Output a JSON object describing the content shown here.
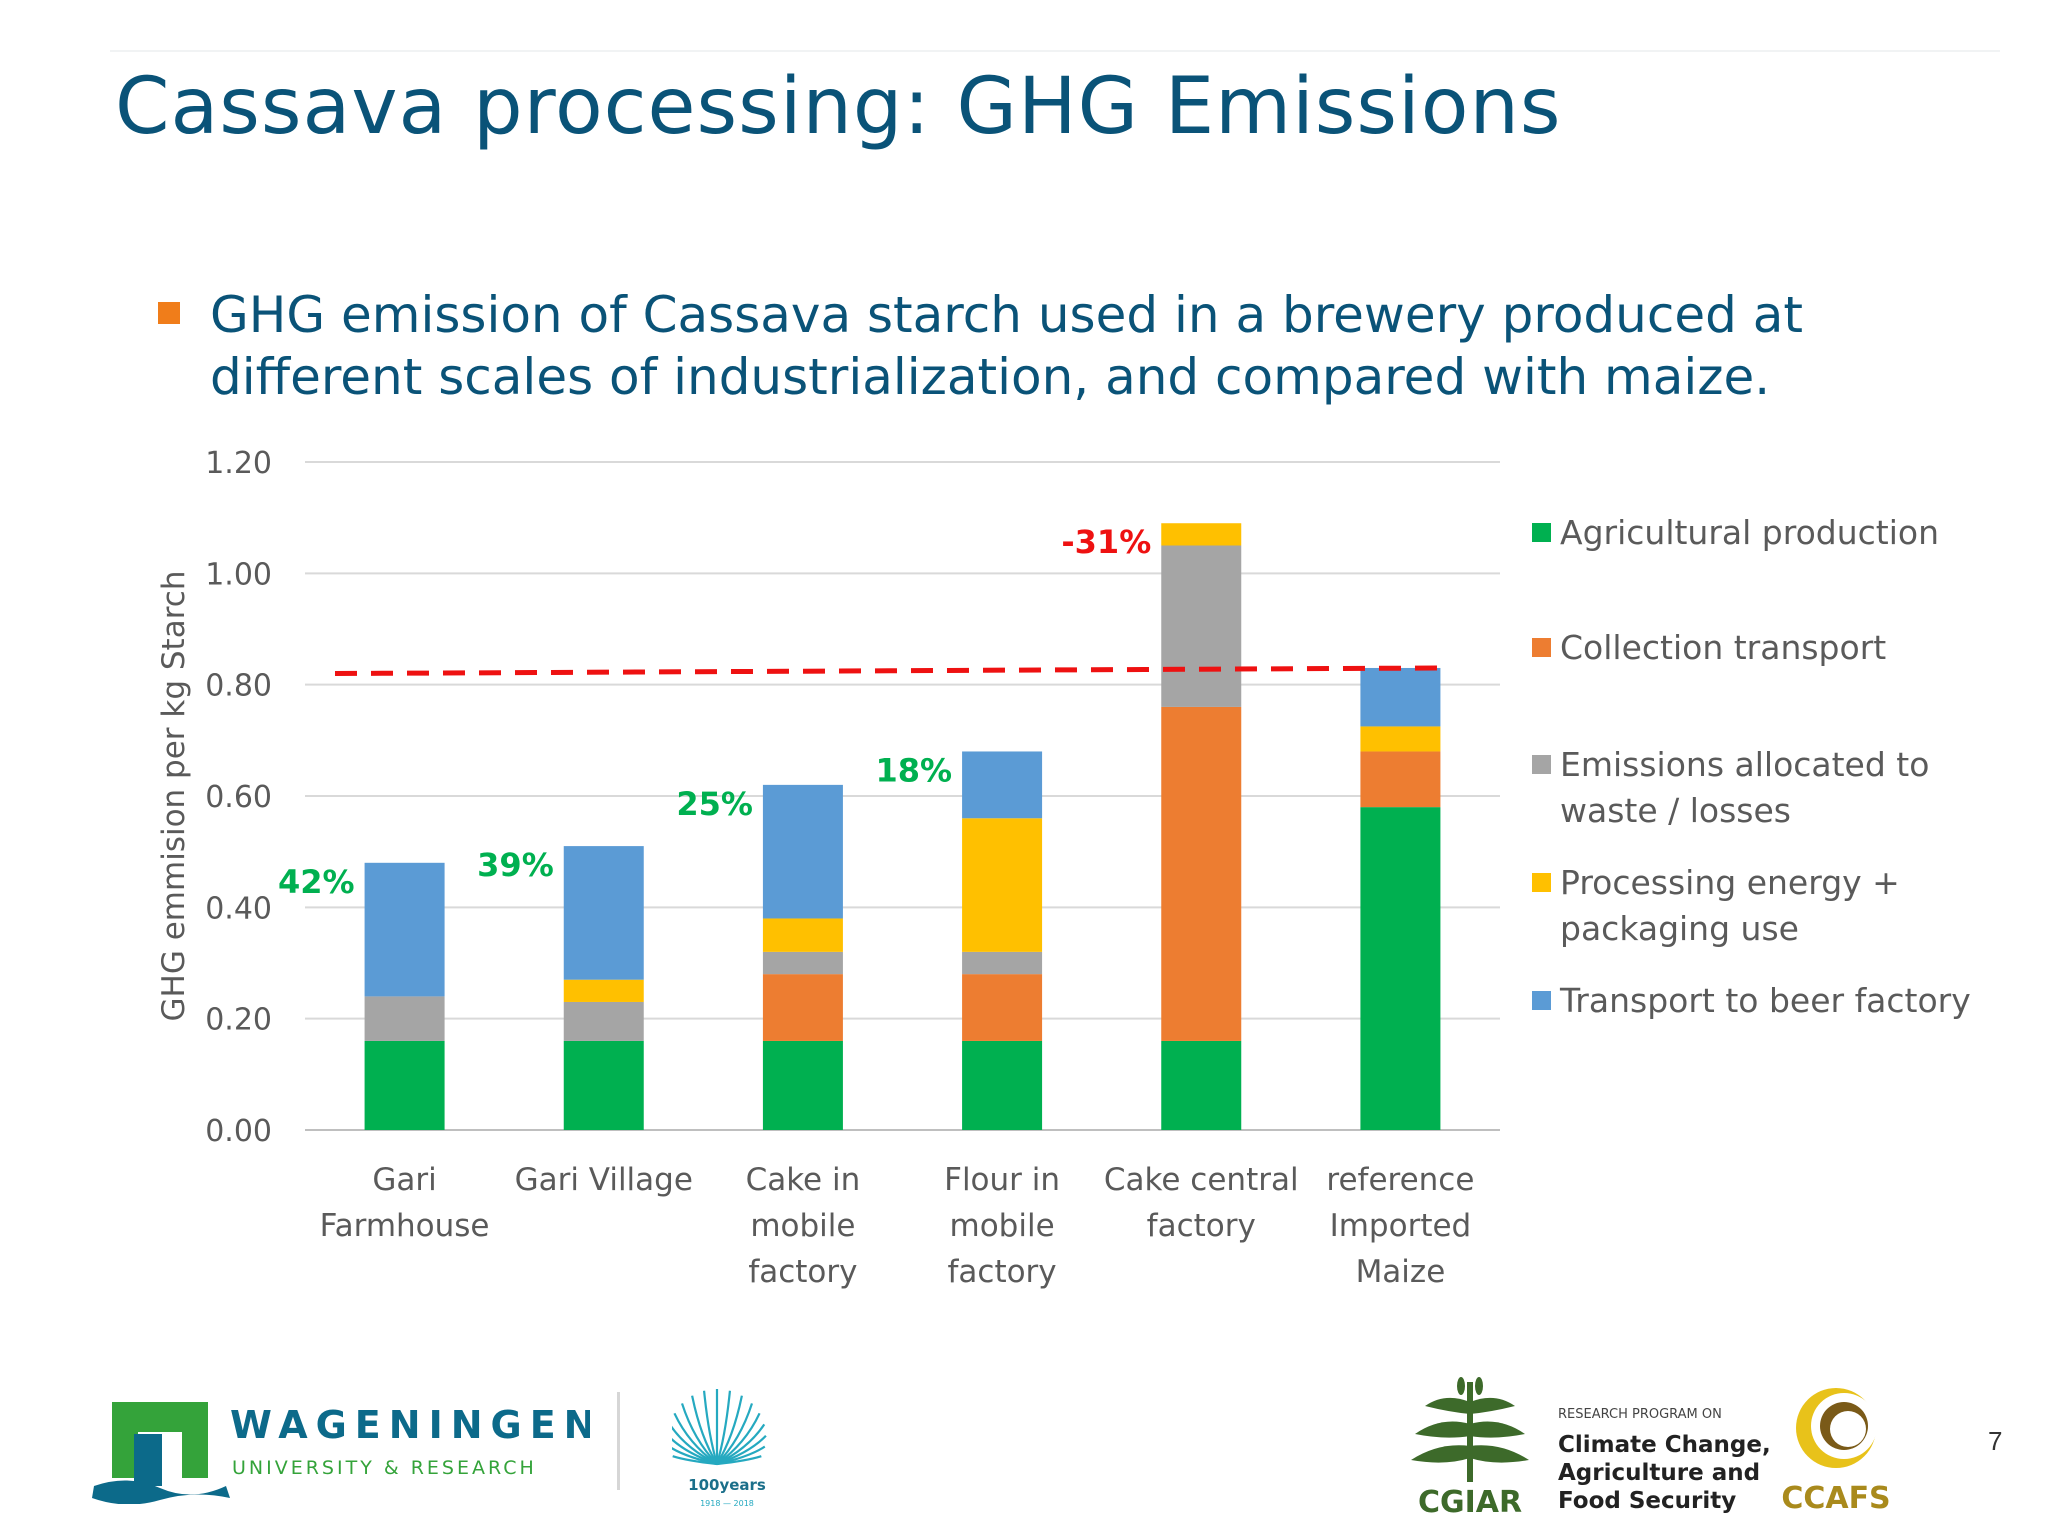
{
  "slide": {
    "title": "Cassava processing: GHG Emissions",
    "bullet": "GHG emission of Cassava starch used in a brewery produced at different scales of industrialization, and compared with maize.",
    "page_number": "7",
    "colors": {
      "title": "#0a5378",
      "bullet_marker": "#f07d1a"
    }
  },
  "chart_data": {
    "type": "bar",
    "stacked": true,
    "ylabel": "GHG emmision per kg Starch",
    "ylim": [
      0,
      1.2
    ],
    "yticks": [
      "0.00",
      "0.20",
      "0.40",
      "0.60",
      "0.80",
      "1.00",
      "1.20"
    ],
    "grid": true,
    "legend_position": "right",
    "categories": [
      [
        "Gari",
        "Farmhouse"
      ],
      [
        "Gari Village"
      ],
      [
        "Cake in",
        "mobile",
        "factory"
      ],
      [
        "Flour in",
        "mobile",
        "factory"
      ],
      [
        "Cake central",
        "factory"
      ],
      [
        "reference",
        "Imported",
        "Maize"
      ]
    ],
    "series": [
      {
        "name": "Agricultural production",
        "color": "#00b050",
        "values": [
          0.16,
          0.16,
          0.16,
          0.16,
          0.16,
          0.58
        ]
      },
      {
        "name": "Collection transport",
        "color": "#ed7d31",
        "values": [
          0.0,
          0.0,
          0.12,
          0.12,
          0.6,
          0.1
        ]
      },
      {
        "name": "Emissions allocated to waste / losses",
        "color": "#a5a5a5",
        "values": [
          0.08,
          0.07,
          0.04,
          0.04,
          0.29,
          0.0
        ]
      },
      {
        "name": "Processing energy + packaging use",
        "color": "#ffc000",
        "values": [
          0.0,
          0.04,
          0.06,
          0.24,
          0.04,
          0.045
        ]
      },
      {
        "name": "Transport to beer factory",
        "color": "#5b9bd5",
        "values": [
          0.24,
          0.24,
          0.24,
          0.12,
          0.0,
          0.105
        ]
      }
    ],
    "annotations": [
      {
        "text": "42%",
        "category_index": 0,
        "color": "#00b050"
      },
      {
        "text": "39%",
        "category_index": 1,
        "color": "#00b050"
      },
      {
        "text": "25%",
        "category_index": 2,
        "color": "#00b050"
      },
      {
        "text": "18%",
        "category_index": 3,
        "color": "#00b050"
      },
      {
        "text": "-31%",
        "category_index": 4,
        "color": "#ee1111"
      }
    ],
    "reference_line": {
      "value": 0.82,
      "value_end": 0.83,
      "style": "dashed",
      "color": "#ee1111"
    }
  },
  "logos": {
    "wageningen": {
      "name": "WAGENINGEN",
      "subtitle": "UNIVERSITY & RESEARCH",
      "color": "#0c6a8a",
      "accent": "#34a33a"
    },
    "centennial": {
      "label": "100years",
      "years": "1918 — 2018",
      "color": "#25a9c0"
    },
    "cgiar": {
      "label": "CGIAR",
      "color": "#3d6a2a"
    },
    "program": {
      "kicker": "RESEARCH PROGRAM ON",
      "lines": [
        "Climate Change,",
        "Agriculture and",
        "Food Security"
      ]
    },
    "ccafs": {
      "label": "CCAFS",
      "color": "#a98a1c"
    }
  }
}
